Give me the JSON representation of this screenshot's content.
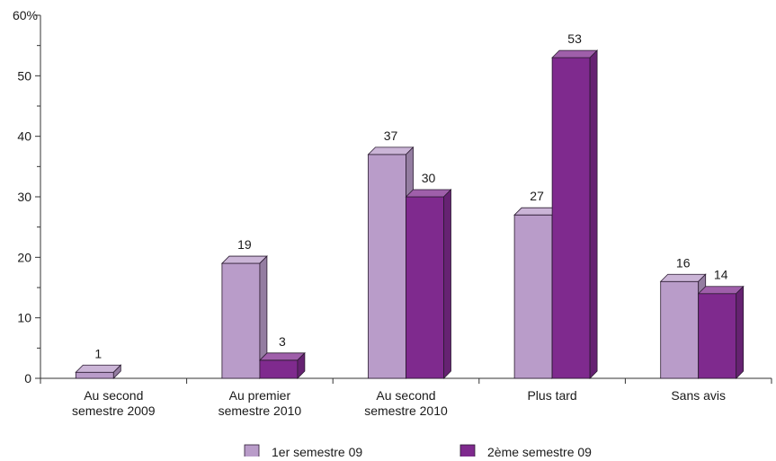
{
  "chart_data": {
    "type": "bar",
    "y_unit_label": "60%",
    "ylim": [
      0,
      60
    ],
    "yticks": [
      "0",
      "10",
      "20",
      "30",
      "40",
      "50"
    ],
    "grid": false,
    "legend_position": "bottom",
    "categories": [
      [
        "Au second",
        "semestre 2009"
      ],
      [
        "Au premier",
        "semestre 2010"
      ],
      [
        "Au second",
        "semestre 2010"
      ],
      [
        "Plus tard"
      ],
      [
        "Sans avis"
      ]
    ],
    "series": [
      {
        "name": "1er semestre 09",
        "color": "#b99cc9",
        "values": [
          1,
          19,
          37,
          27,
          16
        ],
        "labels": [
          "1",
          "19",
          "37",
          "27",
          "16"
        ]
      },
      {
        "name": "2ème semestre 09",
        "color": "#7f2a8e",
        "values": [
          null,
          3,
          30,
          53,
          14
        ],
        "labels": [
          "",
          "3",
          "30",
          "53",
          "14"
        ]
      }
    ]
  }
}
